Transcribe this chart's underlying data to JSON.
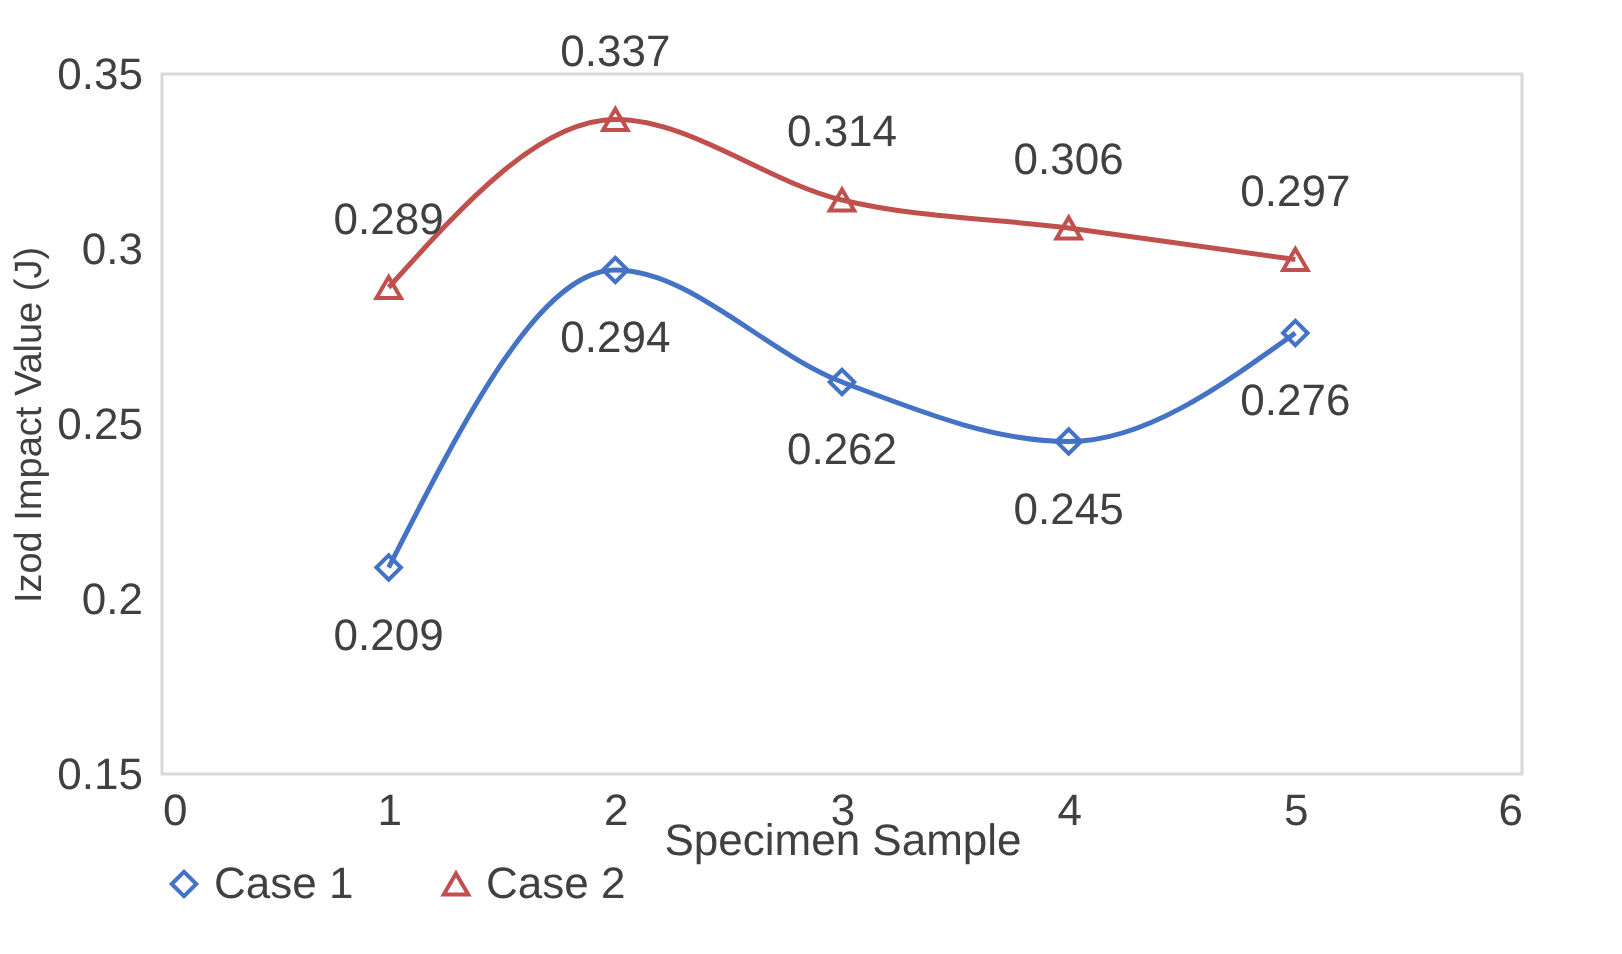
{
  "chart_data": {
    "type": "line",
    "xlabel": "Specimen Sample",
    "ylabel": "Izod Impact Value (J)",
    "x": [
      1,
      2,
      3,
      4,
      5
    ],
    "series": [
      {
        "name": "Case 1",
        "color": "#4472c4",
        "marker": "diamond",
        "values": [
          0.209,
          0.294,
          0.262,
          0.245,
          0.276
        ]
      },
      {
        "name": "Case 2",
        "color": "#c0504d",
        "marker": "triangle",
        "values": [
          0.289,
          0.337,
          0.314,
          0.306,
          0.297
        ]
      }
    ],
    "xlim": [
      0,
      6
    ],
    "xticks": [
      0,
      1,
      2,
      3,
      4,
      5,
      6
    ],
    "ylim": [
      0.15,
      0.35
    ],
    "yticks": [
      0.15,
      0.2,
      0.25,
      0.3,
      0.35
    ],
    "grid": false,
    "legend": "bottom",
    "data_labels": true,
    "line_style": "solid"
  }
}
